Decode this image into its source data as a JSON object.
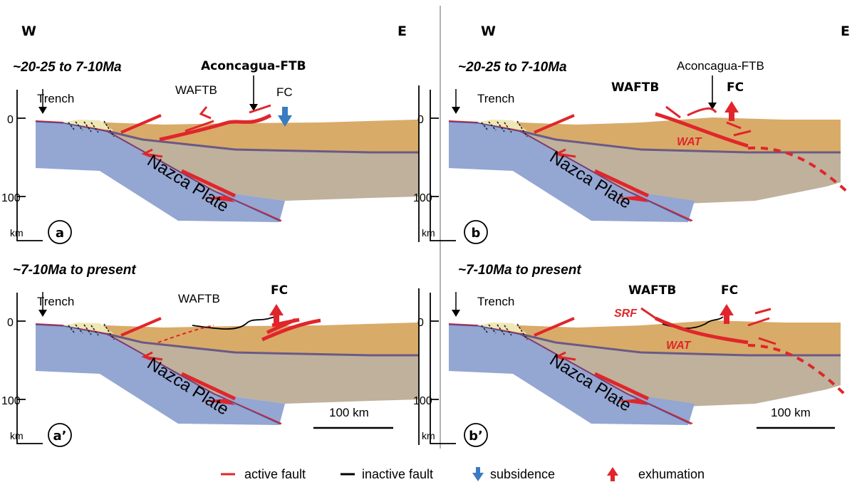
{
  "directions": {
    "west": "W",
    "east": "E"
  },
  "panels": {
    "a": {
      "period": "~20-25 to 7-10Ma",
      "letter": "a",
      "trench": "Trench",
      "depth_top": "0",
      "depth_100": "100",
      "depth_unit": "km",
      "plate": "Nazca  Plate",
      "waftb": "WAFTB",
      "belt": "Aconcagua-FTB",
      "fc": "FC"
    },
    "b": {
      "period": "~20-25 to 7-10Ma",
      "letter": "b",
      "trench": "Trench",
      "depth_top": "0",
      "depth_100": "100",
      "depth_unit": "km",
      "plate": "Nazca  Plate",
      "waftb": "WAFTB",
      "belt": "Aconcagua-FTB",
      "fc": "FC",
      "wat": "WAT"
    },
    "a2": {
      "period": "~7-10Ma to present",
      "letter": "a’",
      "trench": "Trench",
      "depth_top": "0",
      "depth_100": "100",
      "depth_unit": "km",
      "plate": "Nazca  Plate",
      "waftb": "WAFTB",
      "fc": "FC",
      "scale": "100 km"
    },
    "b2": {
      "period": "~7-10Ma to present",
      "letter": "b’",
      "trench": "Trench",
      "depth_top": "0",
      "depth_100": "100",
      "depth_unit": "km",
      "plate": "Nazca  Plate",
      "waftb": "WAFTB",
      "fc": "FC",
      "srf": "SRF",
      "wat": "WAT",
      "scale": "100 km"
    }
  },
  "legend": {
    "active_fault": "active fault",
    "inactive_fault": "inactive fault",
    "subsidence": "subsidence",
    "exhumation": "exhumation"
  },
  "colors": {
    "crust": "#d9ab68",
    "mantle": "#bfb19c",
    "slab": "#94a6d2",
    "moho": "#6a5a86",
    "sediment": "#efe7b6",
    "active_fault": "#e0262b",
    "subsidence_arrow": "#3a7cc1",
    "exhumation_arrow": "#e0262b"
  }
}
